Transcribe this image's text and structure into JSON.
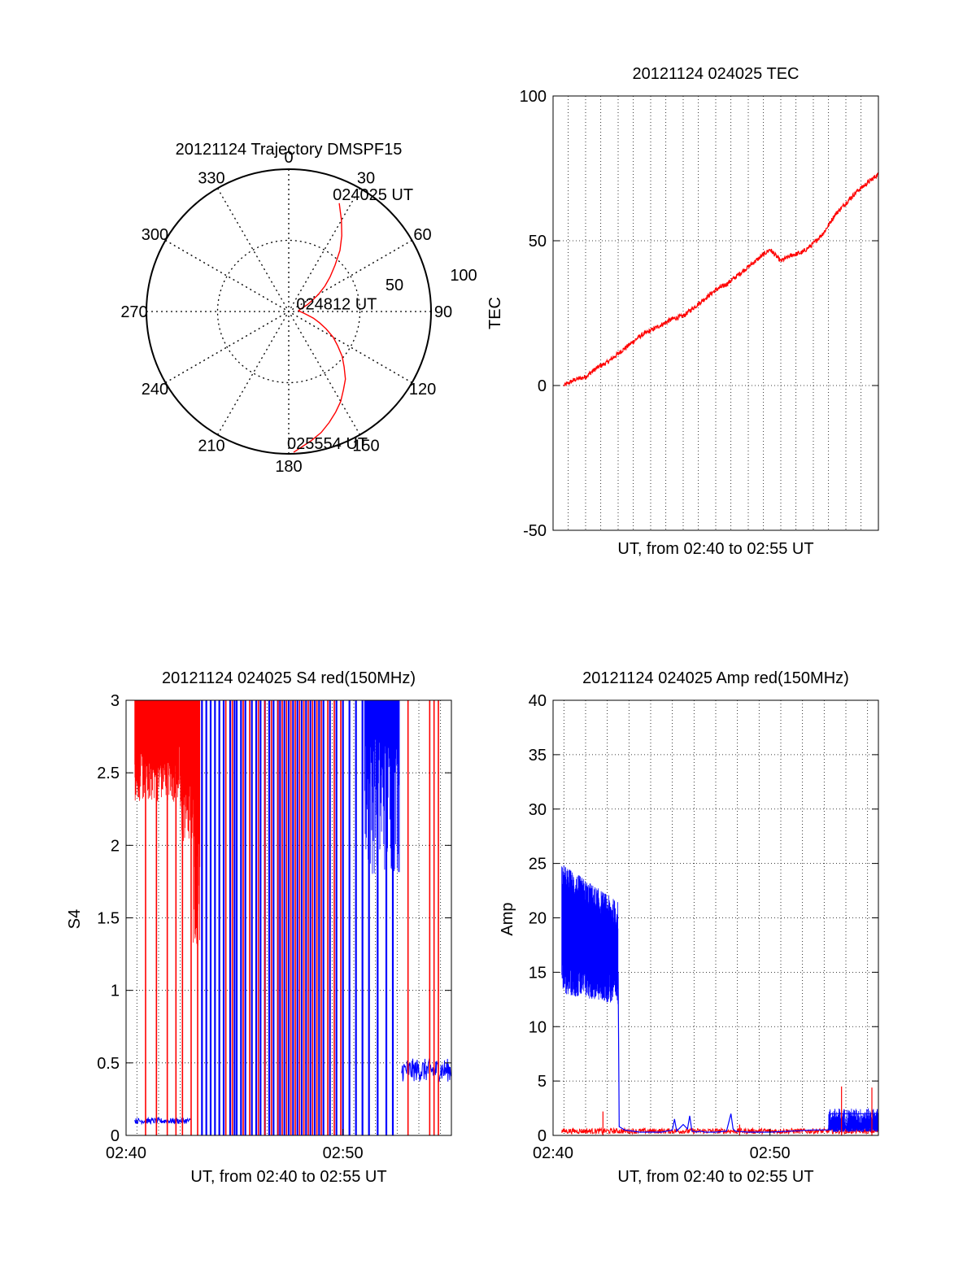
{
  "colors": {
    "primary": "#ff0000",
    "secondary": "#0000ff",
    "axis": "#000000",
    "grid": "#000000"
  },
  "chart_data": [
    {
      "id": "trajectory",
      "type": "polar-trajectory",
      "title": "20121124 Trajectory DMSPF15",
      "grid": "dotted",
      "radial_ticks": [
        50,
        100
      ],
      "radial_labels": [
        "50",
        "100"
      ],
      "azimuth_labels": [
        "0",
        "30",
        "60",
        "90",
        "120",
        "150",
        "180",
        "210",
        "240",
        "270",
        "300",
        "330"
      ],
      "track": [
        [
          25,
          16
        ],
        [
          30,
          26
        ],
        [
          35,
          35
        ],
        [
          40,
          44
        ],
        [
          45,
          54
        ],
        [
          50,
          62
        ],
        [
          55,
          69
        ],
        [
          60,
          76
        ],
        [
          65,
          82
        ],
        [
          70,
          86
        ],
        [
          75,
          90
        ],
        [
          80,
          92
        ],
        [
          85,
          93
        ],
        [
          90,
          92
        ],
        [
          95,
          90
        ],
        [
          100,
          87
        ],
        [
          105,
          82
        ],
        [
          110,
          77
        ],
        [
          115,
          71
        ],
        [
          120,
          64
        ],
        [
          125,
          58
        ],
        [
          130,
          51
        ],
        [
          135,
          45
        ],
        [
          140,
          38
        ],
        [
          145,
          33
        ],
        [
          150,
          27
        ],
        [
          155,
          22
        ],
        [
          160,
          17
        ],
        [
          165,
          12
        ],
        [
          170,
          8
        ],
        [
          175,
          4
        ],
        [
          178,
          1
        ]
      ],
      "annotations": [
        {
          "text": "024025 UT",
          "az": 25,
          "r": 16
        },
        {
          "text": "024812 UT",
          "az": 95,
          "r": 90
        },
        {
          "text": "025554 UT",
          "az": 178,
          "r": 1
        }
      ]
    },
    {
      "id": "tec",
      "type": "line",
      "title": "20121124 024025 TEC",
      "xlabel": "UT, from 02:40 to 02:55 UT",
      "ylabel": "TEC",
      "xlim": [
        0,
        15
      ],
      "ylim": [
        -50,
        100
      ],
      "yticks": [
        -50,
        0,
        50,
        100
      ],
      "xgrid_minutes": [
        0.7,
        1.5,
        2.2,
        3.0,
        3.7,
        4.5,
        5.2,
        6.0,
        6.7,
        7.5,
        8.2,
        9.0,
        9.7,
        10.5,
        11.2,
        12.0,
        12.7,
        13.5,
        14.2
      ],
      "grid": "dotted",
      "series": [
        {
          "color": "#ff0000",
          "x": [
            0.5,
            1.0,
            1.5,
            2.0,
            2.5,
            3.0,
            3.5,
            4.0,
            4.5,
            5.0,
            5.5,
            6.0,
            6.5,
            7.0,
            7.5,
            8.0,
            8.5,
            9.0,
            9.5,
            10.0,
            10.5,
            11.0,
            11.5,
            12.0,
            12.5,
            13.0,
            13.5,
            14.0,
            14.5,
            15.0
          ],
          "values": [
            0,
            2,
            3,
            6,
            8,
            11,
            14,
            17,
            19,
            21,
            23,
            24,
            27,
            30,
            33,
            35,
            38,
            41,
            44,
            47,
            43,
            45,
            46,
            49,
            53,
            59,
            63,
            67,
            70,
            73
          ]
        }
      ]
    },
    {
      "id": "s4",
      "type": "line",
      "title": "20121124 024025 S4 red(150MHz)",
      "xlabel": "UT, from 02:40 to 02:55 UT",
      "ylabel": "S4",
      "xlim": [
        0,
        15
      ],
      "ylim": [
        0,
        3
      ],
      "yticks": [
        0,
        0.5,
        1,
        1.5,
        2,
        2.5,
        3
      ],
      "xticks": [
        0,
        10
      ],
      "xticklabels": [
        "02:40",
        "02:50"
      ],
      "xgrid_minutes": [
        0.5,
        1.5,
        2.5,
        3.5,
        4.5,
        5.5,
        6.5,
        7.5,
        8.5,
        9.5,
        10.5,
        11.5,
        12.5,
        13.5,
        14.5
      ],
      "grid": "dotted",
      "series": [
        {
          "color": "#ff0000",
          "fill_segments": [
            [
              0.4,
              2.5,
              2.3,
              3.0
            ],
            [
              2.5,
              3.1,
              2.0,
              3.0
            ],
            [
              3.1,
              3.4,
              1.3,
              3.0
            ]
          ],
          "spikes": [
            0.9,
            1.4,
            1.9,
            2.3,
            2.6,
            3.0,
            3.3,
            4.6,
            4.9,
            5.4,
            5.7,
            6.1,
            6.4,
            6.7,
            7.0,
            7.2,
            7.4,
            7.6,
            7.8,
            8.0,
            8.2,
            8.4,
            8.6,
            8.8,
            9.0,
            9.3,
            9.6,
            9.9,
            13.0,
            14.0,
            14.2,
            14.4
          ]
        },
        {
          "color": "#0000ff",
          "segments": [
            {
              "x": [
                0.4,
                3.0
              ],
              "level": 0.1,
              "noise": 0.02
            },
            {
              "x": [
                12.7,
                15.0
              ],
              "level": 0.45,
              "noise": 0.08
            }
          ],
          "spikes": [
            3.5,
            3.7,
            3.9,
            4.1,
            4.3,
            4.5,
            4.8,
            5.0,
            5.1,
            5.3,
            5.5,
            5.8,
            6.0,
            6.2,
            6.4,
            6.6,
            6.8,
            7.0,
            7.1,
            7.3,
            7.5,
            7.7,
            7.9,
            8.1,
            8.3,
            8.5,
            8.7,
            8.9,
            9.1,
            9.4,
            9.7,
            10.0,
            10.3,
            10.6,
            10.9,
            11.2,
            11.6,
            12.0,
            12.3
          ],
          "band": [
            [
              11.0,
              12.6,
              1.8,
              3.0
            ]
          ]
        }
      ]
    },
    {
      "id": "amp",
      "type": "line",
      "title": "20121124 024025 Amp red(150MHz)",
      "xlabel": "UT, from 02:40 to 02:55 UT",
      "ylabel": "Amp",
      "xlim": [
        0,
        15
      ],
      "ylim": [
        0,
        40
      ],
      "yticks": [
        0,
        5,
        10,
        15,
        20,
        25,
        30,
        35,
        40
      ],
      "xticks": [
        0,
        10
      ],
      "xticklabels": [
        "02:40",
        "02:50"
      ],
      "xgrid_minutes": [
        0.5,
        1.5,
        2.5,
        3.5,
        4.5,
        5.5,
        6.5,
        7.5,
        8.5,
        9.5,
        10.5,
        11.5,
        12.5,
        13.5,
        14.5
      ],
      "grid": "dotted",
      "series": [
        {
          "color": "#0000ff",
          "band": [
            [
              0.4,
              3.0,
              14,
              25,
              19,
              13,
              24,
              17
            ]
          ],
          "x": [
            3.0,
            3.05,
            3.3,
            4.0,
            5.0,
            5.5,
            5.6,
            5.7,
            6.0,
            6.2,
            6.3,
            6.4,
            6.6,
            6.8,
            7.0,
            7.5,
            8.0,
            8.2,
            8.3,
            8.4,
            9.0,
            10.0,
            11.0,
            12.0,
            12.7,
            12.8,
            15.0
          ],
          "values": [
            15,
            0.8,
            0.5,
            0.3,
            0.3,
            0.5,
            1.5,
            0.4,
            1.0,
            0.6,
            1.8,
            0.4,
            0.3,
            0.4,
            0.3,
            0.3,
            0.4,
            2.0,
            0.6,
            0.4,
            0.3,
            0.3,
            0.4,
            0.5,
            0.5,
            2.0,
            2.0
          ],
          "noisy_tail": [
            12.7,
            15.0,
            0.3,
            2.5
          ]
        },
        {
          "color": "#ff0000",
          "level": 0.4,
          "spikes": [
            [
              2.3,
              2.2
            ],
            [
              8.6,
              1.0
            ],
            [
              13.3,
              4.5
            ],
            [
              14.7,
              4.4
            ]
          ]
        }
      ]
    }
  ]
}
